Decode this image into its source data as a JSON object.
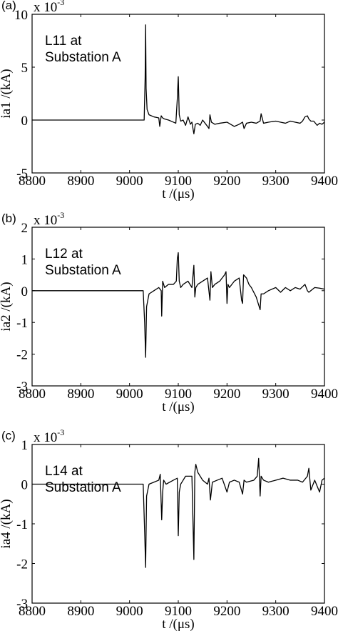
{
  "chart_data": [
    {
      "type": "line",
      "panel_label": "(a)",
      "annotation_line1": "L11 at",
      "annotation_line2": "Substation A",
      "scale_base": "x 10",
      "scale_exp": "-3",
      "xlabel": "t /(μs)",
      "ylabel": "ia1 /(kA)",
      "xlim": [
        8800,
        9400
      ],
      "ylim": [
        -5,
        10
      ],
      "xticks": [
        "8800",
        "8900",
        "9000",
        "9100",
        "9200",
        "9300",
        "9400"
      ],
      "yticks": [
        "-5",
        "0",
        "5",
        "10"
      ],
      "series": [
        {
          "x": [
            8800,
            9030,
            9032,
            9033,
            9034,
            9036,
            9040,
            9050,
            9060,
            9062,
            9065,
            9068,
            9072,
            9080,
            9090,
            9095,
            9098,
            9100,
            9102,
            9105,
            9110,
            9115,
            9120,
            9125,
            9128,
            9132,
            9135,
            9140,
            9145,
            9150,
            9155,
            9160,
            9163,
            9165,
            9168,
            9175,
            9185,
            9200,
            9215,
            9225,
            9232,
            9235,
            9240,
            9250,
            9260,
            9268,
            9270,
            9275,
            9285,
            9300,
            9310,
            9320,
            9330,
            9340,
            9350,
            9355,
            9360,
            9365,
            9368,
            9372,
            9378,
            9385,
            9390,
            9395,
            9400
          ],
          "y": [
            0,
            0,
            4,
            9,
            3,
            1,
            0.5,
            0.3,
            0.2,
            -0.6,
            0.4,
            0.2,
            0.1,
            0,
            -0.2,
            -0.3,
            2,
            4.1,
            0.5,
            -0.1,
            0,
            -0.5,
            0.3,
            -0.4,
            -0.2,
            -1.3,
            -0.4,
            -0.3,
            -0.5,
            0,
            -0.3,
            -0.6,
            -0.8,
            0.5,
            -0.2,
            -0.4,
            -0.3,
            -0.2,
            -0.6,
            -0.4,
            -0.2,
            -0.8,
            -0.3,
            -0.2,
            -0.3,
            -0.1,
            0.6,
            -0.3,
            -0.2,
            -0.1,
            -0.2,
            -0.3,
            -0.1,
            -0.2,
            -0.3,
            -0.1,
            0.3,
            0.4,
            0.1,
            -0.1,
            -0.1,
            -0.5,
            -0.3,
            -0.4,
            -0.2
          ]
        }
      ]
    },
    {
      "type": "line",
      "panel_label": "(b)",
      "annotation_line1": "L12 at",
      "annotation_line2": "Substation A",
      "scale_base": "x 10",
      "scale_exp": "-3",
      "xlabel": "t /(μs)",
      "ylabel": "ia2 /(kA)",
      "xlim": [
        8800,
        9400
      ],
      "ylim": [
        -3,
        2
      ],
      "xticks": [
        "8800",
        "8900",
        "9000",
        "9100",
        "9200",
        "9300",
        "9400"
      ],
      "yticks": [
        "-3",
        "-2",
        "-1",
        "0",
        "1",
        "2"
      ],
      "series": [
        {
          "x": [
            8800,
            9028,
            9031,
            9033,
            9035,
            9040,
            9050,
            9060,
            9065,
            9066,
            9068,
            9072,
            9080,
            9090,
            9096,
            9098,
            9100,
            9102,
            9105,
            9110,
            9120,
            9128,
            9132,
            9134,
            9136,
            9140,
            9150,
            9160,
            9165,
            9167,
            9170,
            9175,
            9185,
            9195,
            9198,
            9200,
            9202,
            9205,
            9215,
            9225,
            9230,
            9232,
            9234,
            9240,
            9245,
            9250,
            9260,
            9268,
            9270,
            9275,
            9285,
            9300,
            9310,
            9320,
            9330,
            9340,
            9350,
            9360,
            9365,
            9368,
            9372,
            9380,
            9390,
            9400
          ],
          "y": [
            0,
            0,
            -1,
            -2.1,
            -0.5,
            -0.1,
            0,
            0.1,
            0,
            -0.8,
            0.3,
            0.1,
            0.2,
            0.2,
            0.3,
            1.0,
            1.2,
            0.3,
            0.1,
            0.2,
            0.3,
            0.1,
            0.8,
            -0.2,
            0.1,
            0.2,
            0.3,
            0.4,
            -0.3,
            0.6,
            0.1,
            0.2,
            0.3,
            0.5,
            0.6,
            -0.4,
            0.2,
            0.1,
            0.3,
            0.4,
            -0.3,
            -0.4,
            0.5,
            0.4,
            0.2,
            0.1,
            -0.2,
            -0.6,
            -0.1,
            -0.1,
            0,
            0.1,
            -0.05,
            0.1,
            0,
            0.1,
            0.05,
            0.2,
            0,
            -0.05,
            0,
            0.1,
            0.08,
            0.05
          ]
        }
      ]
    },
    {
      "type": "line",
      "panel_label": "(c)",
      "annotation_line1": "L14 at",
      "annotation_line2": "Substation A",
      "scale_base": "x 10",
      "scale_exp": "-3",
      "xlabel": "t /(μs)",
      "ylabel": "ia4 /(kA)",
      "xlim": [
        8800,
        9400
      ],
      "ylim": [
        -3,
        1
      ],
      "xticks": [
        "8800",
        "8900",
        "9000",
        "9100",
        "9200",
        "9300",
        "9400"
      ],
      "yticks": [
        "-3",
        "-2",
        "-1",
        "0",
        "1"
      ],
      "series": [
        {
          "x": [
            8800,
            9028,
            9031,
            9033,
            9035,
            9040,
            9050,
            9060,
            9063,
            9066,
            9068,
            9070,
            9075,
            9090,
            9098,
            9100,
            9102,
            9105,
            9115,
            9128,
            9132,
            9134,
            9136,
            9140,
            9150,
            9160,
            9163,
            9166,
            9170,
            9180,
            9190,
            9200,
            9205,
            9215,
            9225,
            9232,
            9235,
            9240,
            9255,
            9262,
            9265,
            9268,
            9270,
            9275,
            9285,
            9300,
            9315,
            9330,
            9345,
            9355,
            9365,
            9368,
            9372,
            9380,
            9390,
            9395,
            9400
          ],
          "y": [
            0,
            0,
            -1.2,
            -2.1,
            -0.3,
            0,
            0.05,
            0.1,
            0.25,
            -0.9,
            -0.2,
            0.1,
            0,
            0.1,
            0.15,
            -1.3,
            -0.2,
            0,
            0.2,
            0.2,
            -1.9,
            0.3,
            0.5,
            0.3,
            0.1,
            0,
            0.15,
            -0.4,
            0.05,
            0.1,
            0.15,
            -0.2,
            0.05,
            0.1,
            0.05,
            -0.25,
            0.1,
            0.05,
            0.1,
            0.2,
            0.65,
            -0.3,
            0.2,
            0.1,
            0.05,
            0.1,
            0.15,
            0.1,
            0.1,
            0.05,
            0.2,
            0.4,
            -0.15,
            0.1,
            -0.2,
            0.1,
            0.15
          ]
        }
      ]
    }
  ]
}
